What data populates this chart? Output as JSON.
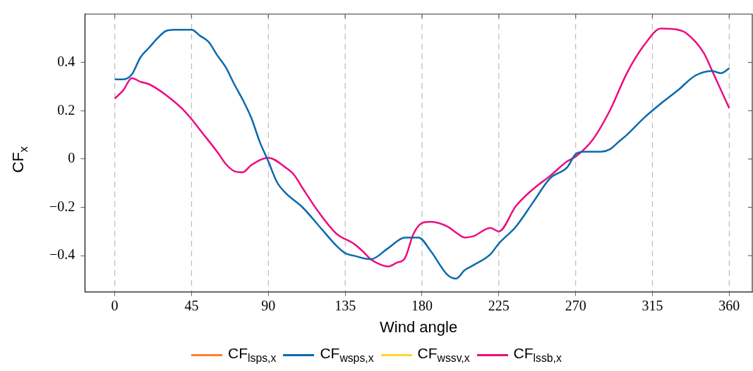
{
  "chart_data": {
    "type": "line",
    "xlabel": "Wind angle",
    "ylabel": "CF$_{x}$",
    "xlim": [
      -17.5,
      373.5
    ],
    "xticks": [
      0,
      45,
      90,
      135,
      180,
      225,
      270,
      315,
      360
    ],
    "ylim": [
      -0.55,
      0.6
    ],
    "yticks": [
      {
        "value": -0.4,
        "label": "−0.4"
      },
      {
        "value": -0.2,
        "label": "−0.2"
      },
      0,
      0.2,
      0.4
    ],
    "grid": "x",
    "legend": "bottom",
    "series": [
      {
        "name": "CF$_{lsps,x}$",
        "color": "#ff7f2a"
      },
      {
        "name": "CF$_{wsps,x}$",
        "color": "#0a6aae",
        "x": [
          0,
          5,
          10,
          15,
          20,
          25,
          30,
          35,
          40,
          45,
          50,
          55,
          60,
          65,
          70,
          75,
          80,
          85,
          90,
          95,
          100,
          110,
          120,
          130,
          135,
          140,
          150,
          160,
          170,
          178,
          185,
          195,
          200,
          205,
          210,
          220,
          225,
          235,
          245,
          255,
          265,
          270,
          275,
          285,
          290,
          295,
          300,
          310,
          320,
          330,
          340,
          350,
          355,
          360
        ],
        "values": [
          0.33,
          0.33,
          0.35,
          0.42,
          0.46,
          0.5,
          0.53,
          0.535,
          0.535,
          0.535,
          0.51,
          0.485,
          0.43,
          0.38,
          0.31,
          0.245,
          0.17,
          0.07,
          -0.01,
          -0.095,
          -0.14,
          -0.2,
          -0.28,
          -0.36,
          -0.39,
          -0.4,
          -0.415,
          -0.37,
          -0.325,
          -0.325,
          -0.38,
          -0.48,
          -0.495,
          -0.46,
          -0.44,
          -0.395,
          -0.35,
          -0.28,
          -0.18,
          -0.08,
          -0.035,
          0.02,
          0.03,
          0.03,
          0.04,
          0.07,
          0.1,
          0.17,
          0.23,
          0.285,
          0.345,
          0.365,
          0.355,
          0.375
        ]
      },
      {
        "name": "CF$_{wssv,x}$",
        "color": "#ffd42a"
      },
      {
        "name": "CF$_{lssb,x}$",
        "color": "#ec0c80",
        "x": [
          0,
          5,
          10,
          15,
          20,
          30,
          40,
          45,
          50,
          60,
          65,
          70,
          75,
          80,
          90,
          100,
          105,
          110,
          120,
          130,
          140,
          145,
          150,
          155,
          160,
          165,
          170,
          175,
          180,
          185,
          195,
          200,
          205,
          210,
          220,
          225,
          235,
          245,
          255,
          265,
          270,
          280,
          290,
          300,
          310,
          320,
          330,
          335,
          345,
          350,
          360
        ],
        "values": [
          0.25,
          0.285,
          0.335,
          0.32,
          0.31,
          0.265,
          0.205,
          0.165,
          0.12,
          0.03,
          -0.02,
          -0.05,
          -0.055,
          -0.025,
          0.005,
          -0.035,
          -0.065,
          -0.12,
          -0.225,
          -0.31,
          -0.35,
          -0.38,
          -0.415,
          -0.435,
          -0.445,
          -0.43,
          -0.41,
          -0.31,
          -0.265,
          -0.26,
          -0.28,
          -0.305,
          -0.325,
          -0.32,
          -0.285,
          -0.3,
          -0.195,
          -0.125,
          -0.07,
          -0.01,
          0.01,
          0.08,
          0.2,
          0.355,
          0.47,
          0.54,
          0.535,
          0.52,
          0.44,
          0.365,
          0.21
        ]
      }
    ]
  }
}
